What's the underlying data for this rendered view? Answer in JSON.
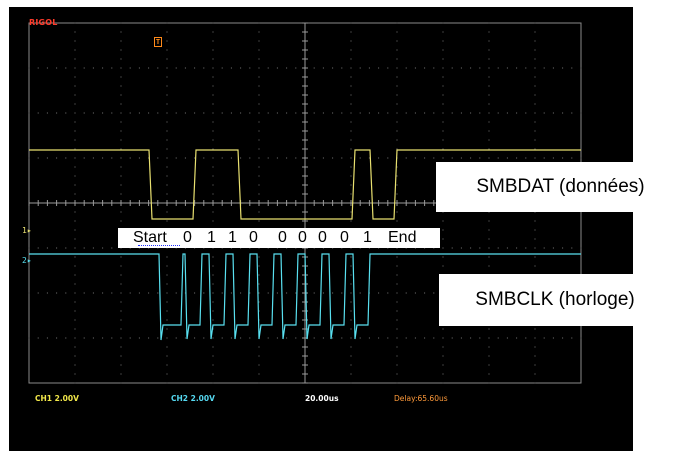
{
  "brand": "RIGOL",
  "trigger_marker": "T",
  "channel_markers": {
    "ch1": "1",
    "ch2": "2"
  },
  "status_bar": {
    "ch1_scale": "CH1 2.00V",
    "ch2_scale": "CH2 2.00V",
    "timebase": "20.00us",
    "delay": "Delay:65.60us"
  },
  "labels": {
    "smbdat": "SMBDAT (données)",
    "smbclk": "SMBCLK (horloge)"
  },
  "bits": {
    "start": "Start",
    "values": [
      "0",
      "1",
      "1",
      "0",
      "0",
      "0",
      "0",
      "0",
      "1"
    ],
    "end": "End"
  },
  "colors": {
    "ch1": "#e8e070",
    "ch2": "#59e0f0",
    "brand": "#ff3a2a",
    "delay": "#ff9a3a",
    "background": "#000000"
  }
}
